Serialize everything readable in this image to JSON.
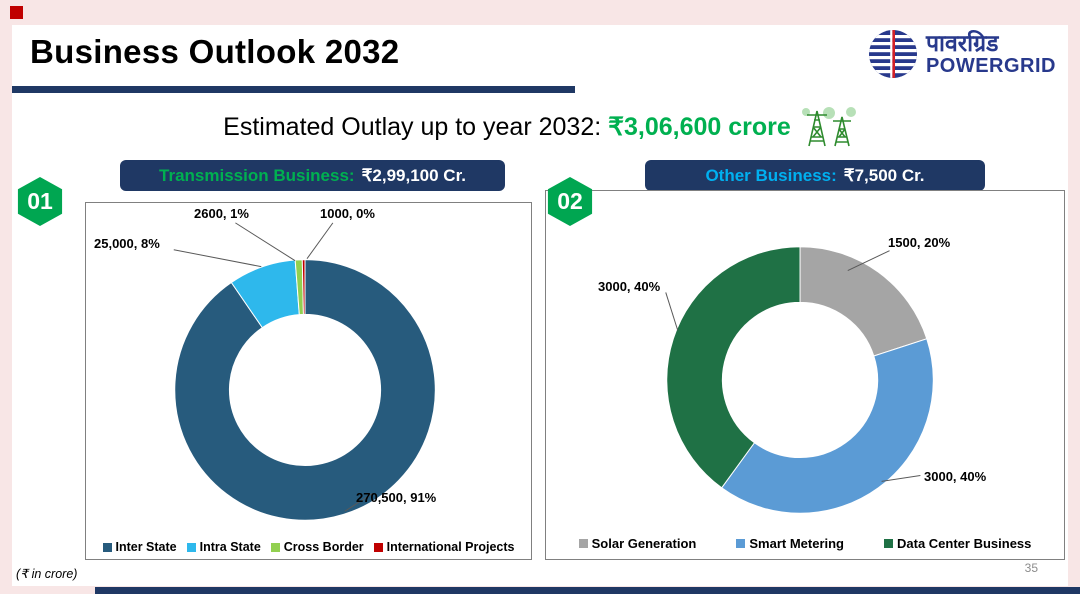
{
  "page": {
    "title": "Business Outlook 2032",
    "estimated_outlay_label": "Estimated Outlay up to year 2032: ",
    "estimated_outlay_value": "₹3,06,600 crore",
    "footer_note": "(₹ in crore)",
    "page_number": "35"
  },
  "logo": {
    "name_hindi": "पावरग्रिड",
    "name_english": "POWERGRID"
  },
  "panels": [
    {
      "badge": "01",
      "header_label": "Transmission Business:",
      "header_value": "₹2,99,100 Cr."
    },
    {
      "badge": "02",
      "header_label": "Other Business:",
      "header_value": "₹7,500 Cr."
    }
  ],
  "chart_data": [
    {
      "type": "pie",
      "donut": true,
      "title": "Transmission Business: ₹2,99,100 Cr.",
      "labels": [
        "Inter State",
        "Intra State",
        "Cross Border",
        "International Projects"
      ],
      "values": [
        270500,
        25000,
        2600,
        1000
      ],
      "percent_labels": [
        "91%",
        "8%",
        "1%",
        "0%"
      ],
      "data_labels": [
        "270,500, 91%",
        "25,000, 8%",
        "2600, 1%",
        "1000, 0%"
      ],
      "colors": [
        "#275B7D",
        "#2EB8EC",
        "#92D050",
        "#C00000"
      ],
      "legend_position": "bottom",
      "start_angle_deg": 0,
      "direction": "clockwise"
    },
    {
      "type": "pie",
      "donut": true,
      "title": "Other Business: ₹7,500 Cr.",
      "labels": [
        "Solar Generation",
        "Smart Metering",
        "Data Center Business"
      ],
      "values": [
        1500,
        3000,
        3000
      ],
      "percent_labels": [
        "20%",
        "40%",
        "40%"
      ],
      "data_labels": [
        "1500, 20%",
        "3000, 40%",
        "3000, 40%"
      ],
      "colors": [
        "#A5A5A5",
        "#5B9BD5",
        "#1F7145"
      ],
      "legend_position": "bottom",
      "start_angle_deg": 0,
      "direction": "clockwise"
    }
  ]
}
